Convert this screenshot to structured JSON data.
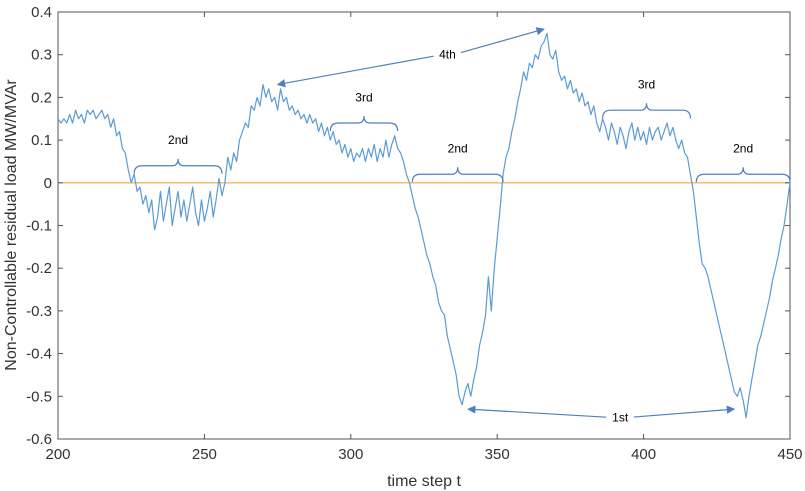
{
  "chart_data": {
    "type": "line",
    "title": "",
    "xlabel": "time step t",
    "ylabel": "Non-Controllable residual load MW/MVAr",
    "xlim": [
      200,
      450
    ],
    "ylim": [
      -0.6,
      0.4
    ],
    "xticks": [
      200,
      250,
      300,
      350,
      400,
      450
    ],
    "yticks": [
      0.4,
      0.3,
      0.2,
      0.1,
      0,
      -0.1,
      -0.2,
      -0.3,
      -0.4,
      -0.5,
      -0.6
    ],
    "grid": false,
    "colors": {
      "series": "#5b9bd5",
      "zero_line": "#f5b66b",
      "annotation": "#4f7fbf"
    },
    "reference_line": {
      "y": 0,
      "color": "#f5b66b"
    },
    "series": [
      {
        "values": [
          {
            "x": 200,
            "y": 0.15
          },
          {
            "x": 201,
            "y": 0.14
          },
          {
            "x": 202,
            "y": 0.15
          },
          {
            "x": 203,
            "y": 0.14
          },
          {
            "x": 204,
            "y": 0.16
          },
          {
            "x": 205,
            "y": 0.14
          },
          {
            "x": 206,
            "y": 0.17
          },
          {
            "x": 207,
            "y": 0.15
          },
          {
            "x": 208,
            "y": 0.16
          },
          {
            "x": 209,
            "y": 0.14
          },
          {
            "x": 210,
            "y": 0.17
          },
          {
            "x": 211,
            "y": 0.16
          },
          {
            "x": 212,
            "y": 0.17
          },
          {
            "x": 213,
            "y": 0.15
          },
          {
            "x": 214,
            "y": 0.16
          },
          {
            "x": 215,
            "y": 0.17
          },
          {
            "x": 216,
            "y": 0.15
          },
          {
            "x": 217,
            "y": 0.16
          },
          {
            "x": 218,
            "y": 0.13
          },
          {
            "x": 219,
            "y": 0.15
          },
          {
            "x": 220,
            "y": 0.11
          },
          {
            "x": 221,
            "y": 0.12
          },
          {
            "x": 222,
            "y": 0.08
          },
          {
            "x": 223,
            "y": 0.07
          },
          {
            "x": 224,
            "y": 0.03
          },
          {
            "x": 225,
            "y": 0.0
          },
          {
            "x": 226,
            "y": 0.02
          },
          {
            "x": 227,
            "y": -0.02
          },
          {
            "x": 228,
            "y": -0.01
          },
          {
            "x": 229,
            "y": -0.05
          },
          {
            "x": 230,
            "y": -0.03
          },
          {
            "x": 231,
            "y": -0.07
          },
          {
            "x": 232,
            "y": -0.04
          },
          {
            "x": 233,
            "y": -0.11
          },
          {
            "x": 234,
            "y": -0.08
          },
          {
            "x": 235,
            "y": -0.02
          },
          {
            "x": 236,
            "y": -0.09
          },
          {
            "x": 237,
            "y": -0.05
          },
          {
            "x": 238,
            "y": -0.01
          },
          {
            "x": 239,
            "y": -0.1
          },
          {
            "x": 240,
            "y": -0.06
          },
          {
            "x": 241,
            "y": -0.02
          },
          {
            "x": 242,
            "y": -0.08
          },
          {
            "x": 243,
            "y": -0.04
          },
          {
            "x": 244,
            "y": -0.09
          },
          {
            "x": 245,
            "y": -0.05
          },
          {
            "x": 246,
            "y": -0.01
          },
          {
            "x": 247,
            "y": -0.07
          },
          {
            "x": 248,
            "y": -0.1
          },
          {
            "x": 249,
            "y": -0.04
          },
          {
            "x": 250,
            "y": -0.09
          },
          {
            "x": 251,
            "y": -0.06
          },
          {
            "x": 252,
            "y": -0.02
          },
          {
            "x": 253,
            "y": -0.08
          },
          {
            "x": 254,
            "y": -0.04
          },
          {
            "x": 255,
            "y": 0.01
          },
          {
            "x": 256,
            "y": -0.03
          },
          {
            "x": 257,
            "y": 0.0
          },
          {
            "x": 258,
            "y": 0.06
          },
          {
            "x": 259,
            "y": 0.03
          },
          {
            "x": 260,
            "y": 0.07
          },
          {
            "x": 261,
            "y": 0.05
          },
          {
            "x": 262,
            "y": 0.1
          },
          {
            "x": 263,
            "y": 0.12
          },
          {
            "x": 264,
            "y": 0.14
          },
          {
            "x": 265,
            "y": 0.13
          },
          {
            "x": 266,
            "y": 0.18
          },
          {
            "x": 267,
            "y": 0.17
          },
          {
            "x": 268,
            "y": 0.2
          },
          {
            "x": 269,
            "y": 0.18
          },
          {
            "x": 270,
            "y": 0.23
          },
          {
            "x": 271,
            "y": 0.2
          },
          {
            "x": 272,
            "y": 0.22
          },
          {
            "x": 273,
            "y": 0.19
          },
          {
            "x": 274,
            "y": 0.2
          },
          {
            "x": 275,
            "y": 0.17
          },
          {
            "x": 276,
            "y": 0.22
          },
          {
            "x": 277,
            "y": 0.19
          },
          {
            "x": 278,
            "y": 0.2
          },
          {
            "x": 279,
            "y": 0.17
          },
          {
            "x": 280,
            "y": 0.18
          },
          {
            "x": 281,
            "y": 0.16
          },
          {
            "x": 282,
            "y": 0.17
          },
          {
            "x": 283,
            "y": 0.15
          },
          {
            "x": 284,
            "y": 0.16
          },
          {
            "x": 285,
            "y": 0.14
          },
          {
            "x": 286,
            "y": 0.16
          },
          {
            "x": 287,
            "y": 0.14
          },
          {
            "x": 288,
            "y": 0.15
          },
          {
            "x": 289,
            "y": 0.12
          },
          {
            "x": 290,
            "y": 0.14
          },
          {
            "x": 291,
            "y": 0.11
          },
          {
            "x": 292,
            "y": 0.13
          },
          {
            "x": 293,
            "y": 0.1
          },
          {
            "x": 294,
            "y": 0.12
          },
          {
            "x": 295,
            "y": 0.09
          },
          {
            "x": 296,
            "y": 0.1
          },
          {
            "x": 297,
            "y": 0.07
          },
          {
            "x": 298,
            "y": 0.09
          },
          {
            "x": 299,
            "y": 0.06
          },
          {
            "x": 300,
            "y": 0.08
          },
          {
            "x": 301,
            "y": 0.05
          },
          {
            "x": 302,
            "y": 0.07
          },
          {
            "x": 303,
            "y": 0.06
          },
          {
            "x": 304,
            "y": 0.08
          },
          {
            "x": 305,
            "y": 0.05
          },
          {
            "x": 306,
            "y": 0.08
          },
          {
            "x": 307,
            "y": 0.06
          },
          {
            "x": 308,
            "y": 0.09
          },
          {
            "x": 309,
            "y": 0.05
          },
          {
            "x": 310,
            "y": 0.08
          },
          {
            "x": 311,
            "y": 0.06
          },
          {
            "x": 312,
            "y": 0.1
          },
          {
            "x": 313,
            "y": 0.06
          },
          {
            "x": 314,
            "y": 0.09
          },
          {
            "x": 315,
            "y": 0.11
          },
          {
            "x": 316,
            "y": 0.08
          },
          {
            "x": 317,
            "y": 0.07
          },
          {
            "x": 318,
            "y": 0.05
          },
          {
            "x": 319,
            "y": 0.02
          },
          {
            "x": 320,
            "y": 0.0
          },
          {
            "x": 321,
            "y": -0.03
          },
          {
            "x": 322,
            "y": -0.06
          },
          {
            "x": 323,
            "y": -0.08
          },
          {
            "x": 324,
            "y": -0.11
          },
          {
            "x": 325,
            "y": -0.14
          },
          {
            "x": 326,
            "y": -0.17
          },
          {
            "x": 327,
            "y": -0.19
          },
          {
            "x": 328,
            "y": -0.22
          },
          {
            "x": 329,
            "y": -0.24
          },
          {
            "x": 330,
            "y": -0.28
          },
          {
            "x": 331,
            "y": -0.3
          },
          {
            "x": 332,
            "y": -0.31
          },
          {
            "x": 333,
            "y": -0.36
          },
          {
            "x": 334,
            "y": -0.39
          },
          {
            "x": 335,
            "y": -0.42
          },
          {
            "x": 336,
            "y": -0.45
          },
          {
            "x": 337,
            "y": -0.5
          },
          {
            "x": 338,
            "y": -0.52
          },
          {
            "x": 339,
            "y": -0.49
          },
          {
            "x": 340,
            "y": -0.47
          },
          {
            "x": 341,
            "y": -0.5
          },
          {
            "x": 342,
            "y": -0.46
          },
          {
            "x": 343,
            "y": -0.43
          },
          {
            "x": 344,
            "y": -0.38
          },
          {
            "x": 345,
            "y": -0.35
          },
          {
            "x": 346,
            "y": -0.31
          },
          {
            "x": 347,
            "y": -0.22
          },
          {
            "x": 348,
            "y": -0.3
          },
          {
            "x": 349,
            "y": -0.2
          },
          {
            "x": 350,
            "y": -0.13
          },
          {
            "x": 351,
            "y": -0.06
          },
          {
            "x": 352,
            "y": 0.02
          },
          {
            "x": 353,
            "y": 0.06
          },
          {
            "x": 354,
            "y": 0.08
          },
          {
            "x": 355,
            "y": 0.12
          },
          {
            "x": 356,
            "y": 0.15
          },
          {
            "x": 357,
            "y": 0.19
          },
          {
            "x": 358,
            "y": 0.22
          },
          {
            "x": 359,
            "y": 0.26
          },
          {
            "x": 360,
            "y": 0.24
          },
          {
            "x": 361,
            "y": 0.28
          },
          {
            "x": 362,
            "y": 0.27
          },
          {
            "x": 363,
            "y": 0.3
          },
          {
            "x": 364,
            "y": 0.29
          },
          {
            "x": 365,
            "y": 0.32
          },
          {
            "x": 366,
            "y": 0.33
          },
          {
            "x": 367,
            "y": 0.35
          },
          {
            "x": 368,
            "y": 0.3
          },
          {
            "x": 369,
            "y": 0.29
          },
          {
            "x": 370,
            "y": 0.31
          },
          {
            "x": 371,
            "y": 0.26
          },
          {
            "x": 372,
            "y": 0.24
          },
          {
            "x": 373,
            "y": 0.25
          },
          {
            "x": 374,
            "y": 0.22
          },
          {
            "x": 375,
            "y": 0.24
          },
          {
            "x": 376,
            "y": 0.21
          },
          {
            "x": 377,
            "y": 0.22
          },
          {
            "x": 378,
            "y": 0.19
          },
          {
            "x": 379,
            "y": 0.21
          },
          {
            "x": 380,
            "y": 0.18
          },
          {
            "x": 381,
            "y": 0.19
          },
          {
            "x": 382,
            "y": 0.16
          },
          {
            "x": 383,
            "y": 0.18
          },
          {
            "x": 384,
            "y": 0.14
          },
          {
            "x": 385,
            "y": 0.12
          },
          {
            "x": 386,
            "y": 0.15
          },
          {
            "x": 387,
            "y": 0.13
          },
          {
            "x": 388,
            "y": 0.1
          },
          {
            "x": 389,
            "y": 0.14
          },
          {
            "x": 390,
            "y": 0.12
          },
          {
            "x": 391,
            "y": 0.09
          },
          {
            "x": 392,
            "y": 0.13
          },
          {
            "x": 393,
            "y": 0.11
          },
          {
            "x": 394,
            "y": 0.08
          },
          {
            "x": 395,
            "y": 0.12
          },
          {
            "x": 396,
            "y": 0.14
          },
          {
            "x": 397,
            "y": 0.1
          },
          {
            "x": 398,
            "y": 0.13
          },
          {
            "x": 399,
            "y": 0.1
          },
          {
            "x": 400,
            "y": 0.12
          },
          {
            "x": 401,
            "y": 0.09
          },
          {
            "x": 402,
            "y": 0.13
          },
          {
            "x": 403,
            "y": 0.1
          },
          {
            "x": 404,
            "y": 0.12
          },
          {
            "x": 405,
            "y": 0.13
          },
          {
            "x": 406,
            "y": 0.1
          },
          {
            "x": 407,
            "y": 0.12
          },
          {
            "x": 408,
            "y": 0.14
          },
          {
            "x": 409,
            "y": 0.11
          },
          {
            "x": 410,
            "y": 0.13
          },
          {
            "x": 411,
            "y": 0.1
          },
          {
            "x": 412,
            "y": 0.08
          },
          {
            "x": 413,
            "y": 0.1
          },
          {
            "x": 414,
            "y": 0.07
          },
          {
            "x": 415,
            "y": 0.06
          },
          {
            "x": 416,
            "y": 0.02
          },
          {
            "x": 417,
            "y": -0.02
          },
          {
            "x": 418,
            "y": -0.08
          },
          {
            "x": 419,
            "y": -0.14
          },
          {
            "x": 420,
            "y": -0.19
          },
          {
            "x": 421,
            "y": -0.2
          },
          {
            "x": 422,
            "y": -0.22
          },
          {
            "x": 423,
            "y": -0.25
          },
          {
            "x": 424,
            "y": -0.28
          },
          {
            "x": 425,
            "y": -0.31
          },
          {
            "x": 426,
            "y": -0.34
          },
          {
            "x": 427,
            "y": -0.37
          },
          {
            "x": 428,
            "y": -0.4
          },
          {
            "x": 429,
            "y": -0.43
          },
          {
            "x": 430,
            "y": -0.46
          },
          {
            "x": 431,
            "y": -0.49
          },
          {
            "x": 432,
            "y": -0.5
          },
          {
            "x": 433,
            "y": -0.48
          },
          {
            "x": 434,
            "y": -0.51
          },
          {
            "x": 435,
            "y": -0.55
          },
          {
            "x": 436,
            "y": -0.5
          },
          {
            "x": 437,
            "y": -0.46
          },
          {
            "x": 438,
            "y": -0.42
          },
          {
            "x": 439,
            "y": -0.38
          },
          {
            "x": 440,
            "y": -0.36
          },
          {
            "x": 441,
            "y": -0.33
          },
          {
            "x": 442,
            "y": -0.3
          },
          {
            "x": 443,
            "y": -0.27
          },
          {
            "x": 444,
            "y": -0.23
          },
          {
            "x": 445,
            "y": -0.2
          },
          {
            "x": 446,
            "y": -0.17
          },
          {
            "x": 447,
            "y": -0.13
          },
          {
            "x": 448,
            "y": -0.1
          },
          {
            "x": 449,
            "y": -0.05
          },
          {
            "x": 450,
            "y": 0.0
          }
        ]
      }
    ],
    "annotations": {
      "braces": [
        {
          "label": "2nd",
          "x_start": 226,
          "x_end": 256,
          "y": 0.04,
          "label_y": 0.1
        },
        {
          "label": "3rd",
          "x_start": 293,
          "x_end": 316,
          "y": 0.14,
          "label_y": 0.2
        },
        {
          "label": "2nd",
          "x_start": 321,
          "x_end": 352,
          "y": 0.02,
          "label_y": 0.08
        },
        {
          "label": "3rd",
          "x_start": 386,
          "x_end": 416,
          "y": 0.17,
          "label_y": 0.23
        },
        {
          "label": "2nd",
          "x_start": 418,
          "x_end": 450,
          "y": 0.02,
          "label_y": 0.08
        }
      ],
      "arrow_groups": [
        {
          "label": "4th",
          "label_x": 333,
          "label_y": 0.3,
          "targets": [
            {
              "x": 275,
              "y": 0.23
            },
            {
              "x": 366,
              "y": 0.36
            }
          ]
        },
        {
          "label": "1st",
          "label_x": 392,
          "label_y": -0.55,
          "targets": [
            {
              "x": 340,
              "y": -0.53
            },
            {
              "x": 431,
              "y": -0.53
            }
          ]
        }
      ]
    }
  }
}
